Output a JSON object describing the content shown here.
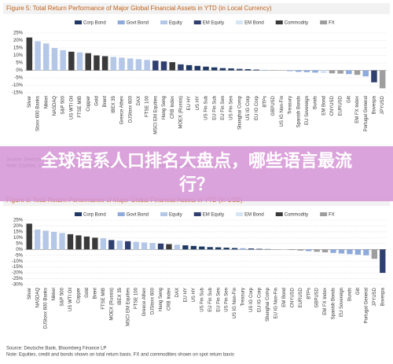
{
  "chart_data": [
    {
      "type": "bar",
      "title": "Figure 5: Total Return Performance of Major Global Financial Assets in YTD (in Local Currency)",
      "legend": [
        {
          "name": "Corp Bond",
          "color": "#1f3864"
        },
        {
          "name": "Govt Bond",
          "color": "#8faadc"
        },
        {
          "name": "Equity",
          "color": "#b4c7e7"
        },
        {
          "name": "EM Equity",
          "color": "#2f3f6f"
        },
        {
          "name": "EM Bond",
          "color": "#d6e4f5"
        },
        {
          "name": "Commodity",
          "color": "#3a3a3a"
        },
        {
          "name": "FX",
          "color": "#9e9e9e"
        }
      ],
      "categories": [
        "Silver",
        "Stoxx 600 Banks",
        "Nikkei",
        "NASDAQ",
        "S&P 500",
        "US WTI Oil",
        "FTSE MIB",
        "Copper",
        "Gold",
        "Brent",
        "IBEX 35",
        "Greece Athex",
        "DJStoxx 600",
        "DAX",
        "FTSE 100",
        "MSCI EM Equities",
        "Hang Seng",
        "CRB Index",
        "MOEX (Russia)",
        "EU HY",
        "US HY",
        "US Fin Sub",
        "EU Fin Sub",
        "EU Fin Sen",
        "US Fin Sen",
        "Shanghai Comp",
        "US IG Corp",
        "EU IG Corp",
        "BTPs",
        "GBPUSD",
        "US IG Non-Fin",
        "Treasury",
        "Spanish Bonds",
        "EU Sovereign",
        "Bunds",
        "EM Bond",
        "CNYUSD",
        "EURUSD",
        "Gilt",
        "EM FX Index",
        "Portugal General",
        "Bovespa",
        "JPYUSD"
      ],
      "values": [
        22,
        19.5,
        18,
        15,
        13.5,
        12.5,
        12,
        11.5,
        10,
        9.5,
        9,
        8.5,
        8,
        7.5,
        7,
        6.5,
        6,
        5.5,
        4,
        3.5,
        3,
        2.5,
        2,
        1.5,
        1.3,
        1,
        0.8,
        0.5,
        0.3,
        0.2,
        0,
        -0.5,
        -1,
        -1.2,
        -1.5,
        -1.8,
        -2,
        -2.2,
        -2.5,
        -3,
        -4,
        -8,
        -12
      ],
      "colors": [
        "#3a3a3a",
        "#b4c7e7",
        "#b4c7e7",
        "#b4c7e7",
        "#b4c7e7",
        "#3a3a3a",
        "#b4c7e7",
        "#3a3a3a",
        "#3a3a3a",
        "#3a3a3a",
        "#b4c7e7",
        "#b4c7e7",
        "#b4c7e7",
        "#b4c7e7",
        "#b4c7e7",
        "#2f3f6f",
        "#2f3f6f",
        "#3a3a3a",
        "#2f3f6f",
        "#1f3864",
        "#1f3864",
        "#1f3864",
        "#1f3864",
        "#1f3864",
        "#1f3864",
        "#2f3f6f",
        "#1f3864",
        "#1f3864",
        "#8faadc",
        "#9e9e9e",
        "#1f3864",
        "#8faadc",
        "#8faadc",
        "#8faadc",
        "#8faadc",
        "#d6e4f5",
        "#9e9e9e",
        "#9e9e9e",
        "#8faadc",
        "#9e9e9e",
        "#8faadc",
        "#2f3f6f",
        "#9e9e9e"
      ],
      "ylim": [
        -15,
        25
      ],
      "yticks": [
        {
          "value": 25,
          "label": "25%"
        },
        {
          "value": 20,
          "label": "20%"
        },
        {
          "value": 15,
          "label": "15%"
        },
        {
          "value": 10,
          "label": "10%"
        },
        {
          "value": 5,
          "label": "5%"
        },
        {
          "value": 0,
          "label": "0%"
        },
        {
          "value": -5,
          "label": "-5%"
        },
        {
          "value": -10,
          "label": "-10%"
        },
        {
          "value": -15,
          "label": "-15%"
        }
      ],
      "grid": true,
      "notes": [
        "Source: Deutsche Bank, Bloomberg Finance LP",
        "Note: Equities, credit and bonds shown on total return basis. FX and commodities shown on spot return basis"
      ]
    },
    {
      "type": "bar",
      "title": "Figure 6: Total Return Performance of Major Global Financial Assets in YTD (in USD)",
      "legend": [
        {
          "name": "Corp Bond",
          "color": "#1f3864"
        },
        {
          "name": "Govt Bond",
          "color": "#8faadc"
        },
        {
          "name": "Equity",
          "color": "#b4c7e7"
        },
        {
          "name": "EM Equity",
          "color": "#2f3f6f"
        },
        {
          "name": "EM Bond",
          "color": "#d6e4f5"
        },
        {
          "name": "Commodity",
          "color": "#3a3a3a"
        },
        {
          "name": "FX",
          "color": "#9e9e9e"
        }
      ],
      "categories": [
        "Silver",
        "NASDAQ",
        "DJStoxx 600 Banks",
        "Nikkei",
        "S&P 500",
        "US WTI Oil",
        "Copper",
        "Gold",
        "Brent",
        "FTSE MIB",
        "MOEX (Russia)",
        "IBEX 35",
        "MSCI EM Equities",
        "FTSE 100",
        "Greece Athex",
        "DJStoxx 600",
        "Hang Seng",
        "CRB Index",
        "DAX",
        "EU HY",
        "US HY",
        "US Fin Sub",
        "EU Fin Sub",
        "EU Fin Sen",
        "US Fin Sen",
        "US IG Non-Fin",
        "Treasury",
        "US IG Corp",
        "EU IG Corp",
        "Shanghai Comp",
        "EU IG Non-Fin",
        "EM Bond",
        "CNYUSD",
        "EURUSD",
        "BTPs",
        "GBPUSD",
        "EM FX Index",
        "Spanish Bonds",
        "EU Sovereign",
        "Bunds",
        "Gilt",
        "Portugal General",
        "JPYUSD",
        "Bovespa"
      ],
      "values": [
        22,
        17,
        16,
        15,
        14,
        13,
        12,
        11,
        10,
        9.5,
        8,
        7.5,
        7,
        6.5,
        6,
        5.5,
        5,
        4.5,
        4,
        3.5,
        3,
        2.5,
        2,
        1.8,
        1.5,
        1.2,
        1,
        0.8,
        0.5,
        0.3,
        0,
        -0.3,
        -0.5,
        -1,
        -1.5,
        -2,
        -2.5,
        -3,
        -3.5,
        -4,
        -4.5,
        -5,
        -8,
        -20
      ],
      "colors": [
        "#3a3a3a",
        "#b4c7e7",
        "#b4c7e7",
        "#b4c7e7",
        "#b4c7e7",
        "#3a3a3a",
        "#3a3a3a",
        "#3a3a3a",
        "#3a3a3a",
        "#b4c7e7",
        "#2f3f6f",
        "#b4c7e7",
        "#2f3f6f",
        "#b4c7e7",
        "#b4c7e7",
        "#b4c7e7",
        "#2f3f6f",
        "#3a3a3a",
        "#b4c7e7",
        "#1f3864",
        "#1f3864",
        "#1f3864",
        "#1f3864",
        "#1f3864",
        "#1f3864",
        "#1f3864",
        "#8faadc",
        "#1f3864",
        "#1f3864",
        "#2f3f6f",
        "#1f3864",
        "#d6e4f5",
        "#9e9e9e",
        "#9e9e9e",
        "#8faadc",
        "#9e9e9e",
        "#9e9e9e",
        "#8faadc",
        "#8faadc",
        "#8faadc",
        "#8faadc",
        "#8faadc",
        "#9e9e9e",
        "#2f3f6f"
      ],
      "ylim": [
        -30,
        25
      ],
      "yticks": [
        {
          "value": 25,
          "label": "25%"
        },
        {
          "value": 20,
          "label": "20%"
        },
        {
          "value": 15,
          "label": "15%"
        },
        {
          "value": 10,
          "label": "10%"
        },
        {
          "value": 5,
          "label": "5%"
        },
        {
          "value": 0,
          "label": "0%"
        },
        {
          "value": -5,
          "label": "-5%"
        },
        {
          "value": -10,
          "label": "-10%"
        },
        {
          "value": -15,
          "label": "-15%"
        },
        {
          "value": -20,
          "label": "-20%"
        },
        {
          "value": -25,
          "label": "-25%"
        },
        {
          "value": -30,
          "label": "-30%"
        }
      ],
      "grid": true,
      "notes": [
        "Source: Deutsche Bank, Bloomberg Finance LP",
        "Note: Equities, credit and bonds shown on total return basis. FX and commodities shown on spot return basis"
      ]
    }
  ],
  "banner": "全球语系人口排名大盘点，哪些语言最流行？"
}
